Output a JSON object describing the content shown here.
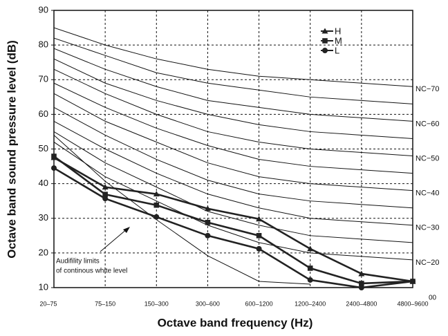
{
  "chart_data": {
    "type": "line",
    "x_label": "Octave band frequency (Hz)",
    "y_label": "Octave band sound pressure level (dB)",
    "categories": [
      "20–75",
      "75–150",
      "150–300",
      "300–600",
      "600–1200",
      "1200–2400",
      "2400–4800",
      "4800–9600"
    ],
    "ylim": [
      10,
      90
    ],
    "yticks": [
      10,
      20,
      30,
      40,
      50,
      60,
      70,
      80,
      90
    ],
    "grid": true,
    "legend": "top-right",
    "series": [
      {
        "name": "H",
        "marker": "triangle",
        "color": "#222",
        "values": [
          47.5,
          39,
          37,
          32.8,
          29.8,
          21.2,
          14,
          11.8
        ]
      },
      {
        "name": "M",
        "marker": "square",
        "color": "#222",
        "values": [
          47.9,
          36.9,
          33.8,
          28.8,
          25,
          15.6,
          11.2,
          11.8
        ]
      },
      {
        "name": "L",
        "marker": "circle",
        "color": "#222",
        "values": [
          44.5,
          35.7,
          30.4,
          25,
          21.2,
          12.2,
          10,
          11.8
        ]
      }
    ],
    "nc_curves": [
      {
        "label": "NC−70",
        "values": [
          85,
          80,
          76,
          73,
          71,
          70,
          69,
          68
        ]
      },
      {
        "values": [
          82,
          77,
          72,
          69,
          67,
          65,
          64,
          63
        ]
      },
      {
        "label": "NC−60",
        "values": [
          79,
          73,
          68,
          64,
          62,
          60,
          59,
          58
        ]
      },
      {
        "values": [
          76,
          69,
          64,
          60,
          57,
          55,
          54,
          53
        ]
      },
      {
        "label": "NC−50",
        "values": [
          73,
          66,
          60,
          55,
          52,
          50,
          49,
          48
        ]
      },
      {
        "values": [
          69,
          62,
          56,
          51,
          47,
          45,
          44,
          43
        ]
      },
      {
        "label": "NC−40",
        "values": [
          66,
          58,
          52,
          46,
          42,
          40,
          39,
          38
        ]
      },
      {
        "values": [
          62,
          54,
          47,
          41,
          37,
          35,
          34,
          33
        ]
      },
      {
        "label": "NC−30",
        "values": [
          58,
          50,
          43,
          37,
          33,
          30,
          29,
          28
        ]
      },
      {
        "values": [
          55,
          46,
          39,
          32,
          28,
          25,
          24,
          23
        ]
      },
      {
        "label": "NC−20",
        "values": [
          52,
          42,
          35,
          28,
          23,
          20,
          19,
          18
        ]
      }
    ],
    "bottom_label": "00",
    "threshold": {
      "values": [
        54,
        40.7,
        29.6,
        19.2,
        11.8,
        11,
        null,
        null
      ]
    },
    "annotation": [
      "Audifility limits",
      "of continous white level"
    ]
  }
}
